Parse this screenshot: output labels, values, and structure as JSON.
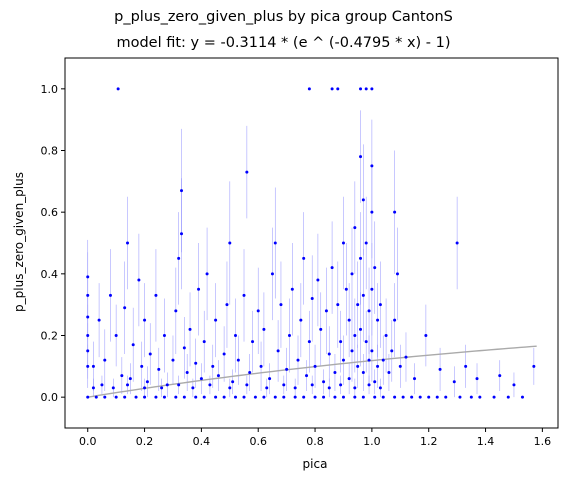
{
  "chart_data": {
    "type": "scatter",
    "title": "p_plus_zero_given_plus by pica group CantonS",
    "subtitle": "model fit: y = -0.3114 * (e ^ (-0.4795 * x) - 1)",
    "xlabel": "pica",
    "ylabel": "p_plus_zero_given_plus",
    "xlim": [
      -0.08,
      1.655
    ],
    "ylim": [
      -0.1,
      1.1
    ],
    "xticks": [
      "0.0",
      "0.2",
      "0.4",
      "0.6",
      "0.8",
      "1.0",
      "1.2",
      "1.4",
      "1.6"
    ],
    "xtick_values": [
      0.0,
      0.2,
      0.4,
      0.6,
      0.8,
      1.0,
      1.2,
      1.4,
      1.6
    ],
    "yticks": [
      "0.0",
      "0.2",
      "0.4",
      "0.6",
      "0.8",
      "1.0"
    ],
    "ytick_values": [
      0.0,
      0.2,
      0.4,
      0.6,
      0.8,
      1.0
    ],
    "grid": false,
    "legend": "none",
    "colors": {
      "points": "#0000ff",
      "error_bars": "#8c8cff",
      "fit": "#aaaaaa"
    },
    "fit": {
      "a": -0.3114,
      "b": -0.4795,
      "x_range": [
        0.0,
        1.58
      ]
    },
    "series": [
      {
        "values": [
          {
            "x": 0.107,
            "y": 1.0,
            "e": 0.0
          },
          {
            "x": 0.78,
            "y": 1.0,
            "e": 0.0
          },
          {
            "x": 0.86,
            "y": 1.0,
            "e": 0.0
          },
          {
            "x": 0.88,
            "y": 1.0,
            "e": 0.0
          },
          {
            "x": 0.96,
            "y": 1.0,
            "e": 0.0
          },
          {
            "x": 0.98,
            "y": 1.0,
            "e": 0.0
          },
          {
            "x": 1.0,
            "y": 1.0,
            "e": 0.0
          },
          {
            "x": 0.33,
            "y": 0.67,
            "e": 0.2
          },
          {
            "x": 0.56,
            "y": 0.73,
            "e": 0.15
          },
          {
            "x": 1.0,
            "y": 0.75,
            "e": 0.15
          },
          {
            "x": 0.97,
            "y": 0.64,
            "e": 0.18
          },
          {
            "x": 0.96,
            "y": 0.78,
            "e": 0.15
          },
          {
            "x": 1.08,
            "y": 0.6,
            "e": 0.2
          },
          {
            "x": 1.3,
            "y": 0.5,
            "e": 0.15
          },
          {
            "x": 0.14,
            "y": 0.5,
            "e": 0.15
          },
          {
            "x": 0.5,
            "y": 0.5,
            "e": 0.2
          },
          {
            "x": 0.66,
            "y": 0.5,
            "e": 0.18
          },
          {
            "x": 0.33,
            "y": 0.53,
            "e": 0.18
          },
          {
            "x": 0.0,
            "y": 0.39,
            "e": 0.12
          },
          {
            "x": 0.0,
            "y": 0.26,
            "e": 0.12
          },
          {
            "x": 0.0,
            "y": 0.33,
            "e": 0.14
          },
          {
            "x": 0.0,
            "y": 0.2,
            "e": 0.1
          },
          {
            "x": 0.0,
            "y": 0.15,
            "e": 0.09
          },
          {
            "x": 0.0,
            "y": 0.1,
            "e": 0.07
          },
          {
            "x": 0.02,
            "y": 0.1,
            "e": 0.08
          },
          {
            "x": 0.04,
            "y": 0.25,
            "e": 0.12
          },
          {
            "x": 0.06,
            "y": 0.12,
            "e": 0.1
          },
          {
            "x": 0.08,
            "y": 0.33,
            "e": 0.15
          },
          {
            "x": 0.1,
            "y": 0.2,
            "e": 0.1
          },
          {
            "x": 0.12,
            "y": 0.07,
            "e": 0.06
          },
          {
            "x": 0.13,
            "y": 0.29,
            "e": 0.15
          },
          {
            "x": 0.15,
            "y": 0.06,
            "e": 0.05
          },
          {
            "x": 0.16,
            "y": 0.17,
            "e": 0.12
          },
          {
            "x": 0.18,
            "y": 0.38,
            "e": 0.15
          },
          {
            "x": 0.19,
            "y": 0.1,
            "e": 0.08
          },
          {
            "x": 0.2,
            "y": 0.25,
            "e": 0.12
          },
          {
            "x": 0.21,
            "y": 0.05,
            "e": 0.05
          },
          {
            "x": 0.22,
            "y": 0.14,
            "e": 0.1
          },
          {
            "x": 0.24,
            "y": 0.33,
            "e": 0.15
          },
          {
            "x": 0.25,
            "y": 0.09,
            "e": 0.07
          },
          {
            "x": 0.27,
            "y": 0.2,
            "e": 0.12
          },
          {
            "x": 0.28,
            "y": 0.04,
            "e": 0.04
          },
          {
            "x": 0.3,
            "y": 0.12,
            "e": 0.08
          },
          {
            "x": 0.31,
            "y": 0.28,
            "e": 0.14
          },
          {
            "x": 0.32,
            "y": 0.45,
            "e": 0.15
          },
          {
            "x": 0.34,
            "y": 0.16,
            "e": 0.1
          },
          {
            "x": 0.35,
            "y": 0.08,
            "e": 0.06
          },
          {
            "x": 0.36,
            "y": 0.22,
            "e": 0.12
          },
          {
            "x": 0.38,
            "y": 0.11,
            "e": 0.08
          },
          {
            "x": 0.39,
            "y": 0.35,
            "e": 0.15
          },
          {
            "x": 0.4,
            "y": 0.06,
            "e": 0.05
          },
          {
            "x": 0.41,
            "y": 0.18,
            "e": 0.1
          },
          {
            "x": 0.42,
            "y": 0.4,
            "e": 0.15
          },
          {
            "x": 0.44,
            "y": 0.1,
            "e": 0.07
          },
          {
            "x": 0.45,
            "y": 0.25,
            "e": 0.12
          },
          {
            "x": 0.46,
            "y": 0.07,
            "e": 0.05
          },
          {
            "x": 0.48,
            "y": 0.14,
            "e": 0.09
          },
          {
            "x": 0.49,
            "y": 0.3,
            "e": 0.14
          },
          {
            "x": 0.51,
            "y": 0.05,
            "e": 0.04
          },
          {
            "x": 0.52,
            "y": 0.2,
            "e": 0.12
          },
          {
            "x": 0.53,
            "y": 0.12,
            "e": 0.08
          },
          {
            "x": 0.55,
            "y": 0.33,
            "e": 0.15
          },
          {
            "x": 0.57,
            "y": 0.08,
            "e": 0.06
          },
          {
            "x": 0.58,
            "y": 0.18,
            "e": 0.1
          },
          {
            "x": 0.6,
            "y": 0.28,
            "e": 0.14
          },
          {
            "x": 0.61,
            "y": 0.1,
            "e": 0.08
          },
          {
            "x": 0.62,
            "y": 0.22,
            "e": 0.12
          },
          {
            "x": 0.64,
            "y": 0.06,
            "e": 0.05
          },
          {
            "x": 0.65,
            "y": 0.4,
            "e": 0.15
          },
          {
            "x": 0.67,
            "y": 0.15,
            "e": 0.1
          },
          {
            "x": 0.68,
            "y": 0.3,
            "e": 0.14
          },
          {
            "x": 0.7,
            "y": 0.09,
            "e": 0.07
          },
          {
            "x": 0.71,
            "y": 0.2,
            "e": 0.12
          },
          {
            "x": 0.72,
            "y": 0.35,
            "e": 0.15
          },
          {
            "x": 0.74,
            "y": 0.12,
            "e": 0.08
          },
          {
            "x": 0.75,
            "y": 0.25,
            "e": 0.12
          },
          {
            "x": 0.76,
            "y": 0.45,
            "e": 0.15
          },
          {
            "x": 0.77,
            "y": 0.07,
            "e": 0.05
          },
          {
            "x": 0.78,
            "y": 0.18,
            "e": 0.1
          },
          {
            "x": 0.79,
            "y": 0.32,
            "e": 0.14
          },
          {
            "x": 0.8,
            "y": 0.1,
            "e": 0.07
          },
          {
            "x": 0.81,
            "y": 0.38,
            "e": 0.15
          },
          {
            "x": 0.82,
            "y": 0.22,
            "e": 0.12
          },
          {
            "x": 0.83,
            "y": 0.05,
            "e": 0.04
          },
          {
            "x": 0.84,
            "y": 0.28,
            "e": 0.14
          },
          {
            "x": 0.85,
            "y": 0.14,
            "e": 0.09
          },
          {
            "x": 0.86,
            "y": 0.42,
            "e": 0.15
          },
          {
            "x": 0.87,
            "y": 0.08,
            "e": 0.06
          },
          {
            "x": 0.88,
            "y": 0.3,
            "e": 0.14
          },
          {
            "x": 0.89,
            "y": 0.18,
            "e": 0.1
          },
          {
            "x": 0.9,
            "y": 0.5,
            "e": 0.15
          },
          {
            "x": 0.9,
            "y": 0.12,
            "e": 0.08
          },
          {
            "x": 0.91,
            "y": 0.35,
            "e": 0.15
          },
          {
            "x": 0.92,
            "y": 0.25,
            "e": 0.12
          },
          {
            "x": 0.92,
            "y": 0.06,
            "e": 0.05
          },
          {
            "x": 0.93,
            "y": 0.4,
            "e": 0.15
          },
          {
            "x": 0.93,
            "y": 0.15,
            "e": 0.1
          },
          {
            "x": 0.94,
            "y": 0.55,
            "e": 0.15
          },
          {
            "x": 0.94,
            "y": 0.2,
            "e": 0.12
          },
          {
            "x": 0.95,
            "y": 0.3,
            "e": 0.14
          },
          {
            "x": 0.95,
            "y": 0.1,
            "e": 0.07
          },
          {
            "x": 0.96,
            "y": 0.45,
            "e": 0.15
          },
          {
            "x": 0.96,
            "y": 0.22,
            "e": 0.12
          },
          {
            "x": 0.97,
            "y": 0.33,
            "e": 0.15
          },
          {
            "x": 0.97,
            "y": 0.08,
            "e": 0.06
          },
          {
            "x": 0.98,
            "y": 0.5,
            "e": 0.15
          },
          {
            "x": 0.98,
            "y": 0.18,
            "e": 0.1
          },
          {
            "x": 0.99,
            "y": 0.28,
            "e": 0.14
          },
          {
            "x": 0.99,
            "y": 0.12,
            "e": 0.08
          },
          {
            "x": 1.0,
            "y": 0.6,
            "e": 0.15
          },
          {
            "x": 1.0,
            "y": 0.35,
            "e": 0.15
          },
          {
            "x": 1.0,
            "y": 0.15,
            "e": 0.1
          },
          {
            "x": 1.01,
            "y": 0.42,
            "e": 0.15
          },
          {
            "x": 1.01,
            "y": 0.05,
            "e": 0.04
          },
          {
            "x": 1.02,
            "y": 0.25,
            "e": 0.12
          },
          {
            "x": 1.02,
            "y": 0.1,
            "e": 0.07
          },
          {
            "x": 1.03,
            "y": 0.3,
            "e": 0.14
          },
          {
            "x": 1.04,
            "y": 0.12,
            "e": 0.08
          },
          {
            "x": 1.05,
            "y": 0.2,
            "e": 0.12
          },
          {
            "x": 1.06,
            "y": 0.08,
            "e": 0.06
          },
          {
            "x": 1.07,
            "y": 0.15,
            "e": 0.1
          },
          {
            "x": 1.08,
            "y": 0.25,
            "e": 0.12
          },
          {
            "x": 1.09,
            "y": 0.4,
            "e": 0.15
          },
          {
            "x": 1.1,
            "y": 0.1,
            "e": 0.07
          },
          {
            "x": 1.12,
            "y": 0.13,
            "e": 0.08
          },
          {
            "x": 1.15,
            "y": 0.06,
            "e": 0.05
          },
          {
            "x": 1.19,
            "y": 0.2,
            "e": 0.1
          },
          {
            "x": 1.24,
            "y": 0.09,
            "e": 0.07
          },
          {
            "x": 1.29,
            "y": 0.05,
            "e": 0.05
          },
          {
            "x": 1.33,
            "y": 0.1,
            "e": 0.07
          },
          {
            "x": 1.37,
            "y": 0.06,
            "e": 0.05
          },
          {
            "x": 1.45,
            "y": 0.07,
            "e": 0.05
          },
          {
            "x": 1.5,
            "y": 0.04,
            "e": 0.04
          },
          {
            "x": 1.57,
            "y": 0.1,
            "e": 0.06
          },
          {
            "x": 0.02,
            "y": 0.03,
            "e": 0.03
          },
          {
            "x": 0.05,
            "y": 0.04,
            "e": 0.03
          },
          {
            "x": 0.09,
            "y": 0.03,
            "e": 0.03
          },
          {
            "x": 0.14,
            "y": 0.04,
            "e": 0.03
          },
          {
            "x": 0.2,
            "y": 0.03,
            "e": 0.03
          },
          {
            "x": 0.26,
            "y": 0.03,
            "e": 0.03
          },
          {
            "x": 0.32,
            "y": 0.04,
            "e": 0.03
          },
          {
            "x": 0.37,
            "y": 0.03,
            "e": 0.03
          },
          {
            "x": 0.43,
            "y": 0.04,
            "e": 0.03
          },
          {
            "x": 0.5,
            "y": 0.03,
            "e": 0.03
          },
          {
            "x": 0.56,
            "y": 0.04,
            "e": 0.03
          },
          {
            "x": 0.63,
            "y": 0.03,
            "e": 0.03
          },
          {
            "x": 0.69,
            "y": 0.04,
            "e": 0.03
          },
          {
            "x": 0.73,
            "y": 0.03,
            "e": 0.03
          },
          {
            "x": 0.79,
            "y": 0.04,
            "e": 0.03
          },
          {
            "x": 0.85,
            "y": 0.03,
            "e": 0.03
          },
          {
            "x": 0.89,
            "y": 0.04,
            "e": 0.03
          },
          {
            "x": 0.94,
            "y": 0.03,
            "e": 0.03
          },
          {
            "x": 0.99,
            "y": 0.04,
            "e": 0.03
          },
          {
            "x": 1.03,
            "y": 0.03,
            "e": 0.03
          },
          {
            "x": 0.0,
            "y": 0.0,
            "e": 0.0
          },
          {
            "x": 0.03,
            "y": 0.0,
            "e": 0.0
          },
          {
            "x": 0.06,
            "y": 0.0,
            "e": 0.0
          },
          {
            "x": 0.1,
            "y": 0.0,
            "e": 0.0
          },
          {
            "x": 0.13,
            "y": 0.0,
            "e": 0.0
          },
          {
            "x": 0.17,
            "y": 0.0,
            "e": 0.0
          },
          {
            "x": 0.2,
            "y": 0.0,
            "e": 0.0
          },
          {
            "x": 0.24,
            "y": 0.0,
            "e": 0.0
          },
          {
            "x": 0.27,
            "y": 0.0,
            "e": 0.0
          },
          {
            "x": 0.31,
            "y": 0.0,
            "e": 0.0
          },
          {
            "x": 0.34,
            "y": 0.0,
            "e": 0.0
          },
          {
            "x": 0.38,
            "y": 0.0,
            "e": 0.0
          },
          {
            "x": 0.41,
            "y": 0.0,
            "e": 0.0
          },
          {
            "x": 0.45,
            "y": 0.0,
            "e": 0.0
          },
          {
            "x": 0.48,
            "y": 0.0,
            "e": 0.0
          },
          {
            "x": 0.52,
            "y": 0.0,
            "e": 0.0
          },
          {
            "x": 0.55,
            "y": 0.0,
            "e": 0.0
          },
          {
            "x": 0.59,
            "y": 0.0,
            "e": 0.0
          },
          {
            "x": 0.62,
            "y": 0.0,
            "e": 0.0
          },
          {
            "x": 0.66,
            "y": 0.0,
            "e": 0.0
          },
          {
            "x": 0.69,
            "y": 0.0,
            "e": 0.0
          },
          {
            "x": 0.73,
            "y": 0.0,
            "e": 0.0
          },
          {
            "x": 0.76,
            "y": 0.0,
            "e": 0.0
          },
          {
            "x": 0.8,
            "y": 0.0,
            "e": 0.0
          },
          {
            "x": 0.83,
            "y": 0.0,
            "e": 0.0
          },
          {
            "x": 0.87,
            "y": 0.0,
            "e": 0.0
          },
          {
            "x": 0.9,
            "y": 0.0,
            "e": 0.0
          },
          {
            "x": 0.94,
            "y": 0.0,
            "e": 0.0
          },
          {
            "x": 0.97,
            "y": 0.0,
            "e": 0.0
          },
          {
            "x": 1.01,
            "y": 0.0,
            "e": 0.0
          },
          {
            "x": 1.04,
            "y": 0.0,
            "e": 0.0
          },
          {
            "x": 1.08,
            "y": 0.0,
            "e": 0.0
          },
          {
            "x": 1.11,
            "y": 0.0,
            "e": 0.0
          },
          {
            "x": 1.14,
            "y": 0.0,
            "e": 0.0
          },
          {
            "x": 1.17,
            "y": 0.0,
            "e": 0.0
          },
          {
            "x": 1.2,
            "y": 0.0,
            "e": 0.0
          },
          {
            "x": 1.23,
            "y": 0.0,
            "e": 0.0
          },
          {
            "x": 1.26,
            "y": 0.0,
            "e": 0.0
          },
          {
            "x": 1.31,
            "y": 0.0,
            "e": 0.0
          },
          {
            "x": 1.35,
            "y": 0.0,
            "e": 0.0
          },
          {
            "x": 1.38,
            "y": 0.0,
            "e": 0.0
          },
          {
            "x": 1.43,
            "y": 0.0,
            "e": 0.0
          },
          {
            "x": 1.48,
            "y": 0.0,
            "e": 0.0
          },
          {
            "x": 1.53,
            "y": 0.0,
            "e": 0.0
          }
        ]
      }
    ]
  }
}
